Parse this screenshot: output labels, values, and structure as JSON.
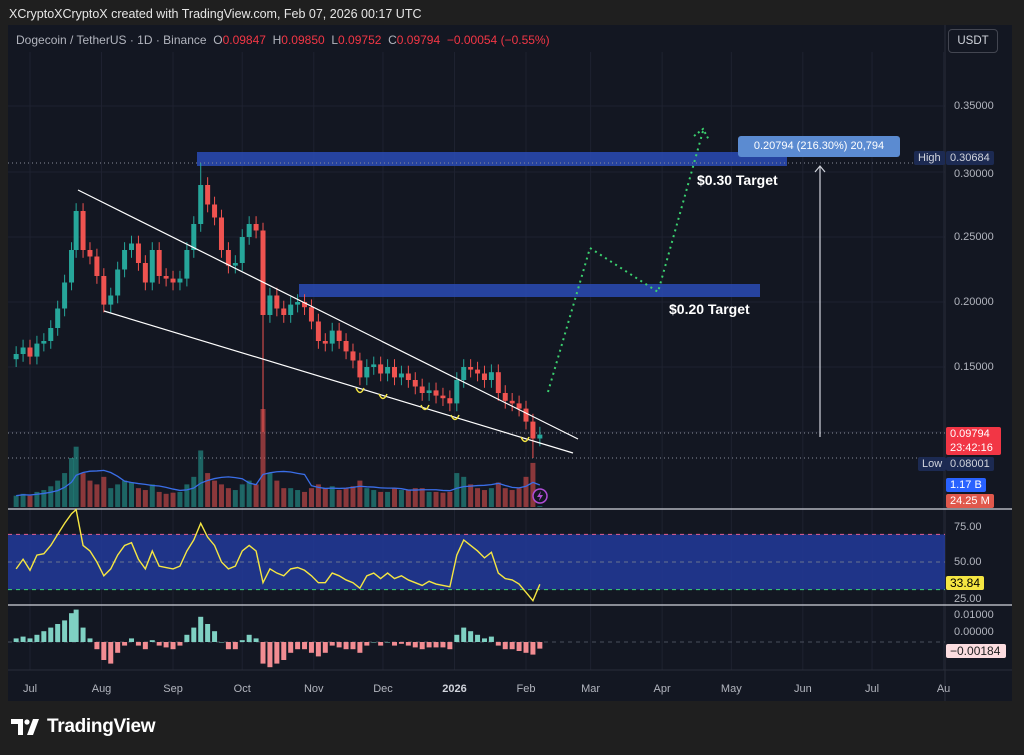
{
  "credit": "XCryptoXCryptoX created with TradingView.com, Feb 07, 2026 00:17 UTC",
  "legend": {
    "symbol": "Dogecoin / TetherUS · 1D · Binance",
    "o_label": "O",
    "o": "0.09847",
    "h_label": "H",
    "h": "0.09850",
    "l_label": "L",
    "l": "0.09752",
    "c_label": "C",
    "c": "0.09794",
    "change": "−0.00054 (−0.55%)"
  },
  "currency_button": "USDT",
  "price_axis": [
    "0.35000",
    "0.30000",
    "0.25000",
    "0.20000",
    "0.15000"
  ],
  "tags": {
    "high_label": "High",
    "high_value": "0.30684",
    "low_label": "Low",
    "low_value": "0.08001",
    "last_price": "0.09794",
    "countdown": "23:42:16",
    "volume_ma": "1.17 B",
    "volume": "24.25 M",
    "rsi_value": "33.84",
    "macd_value": "−0.00184"
  },
  "rsi_axis": [
    "75.00",
    "50.00",
    "25.00"
  ],
  "macd_axis": [
    "0.01000",
    "0.00000"
  ],
  "time_axis": [
    "Jul",
    "Aug",
    "Sep",
    "Oct",
    "Nov",
    "Dec",
    "2026",
    "Feb",
    "Mar",
    "Apr",
    "May",
    "Jun",
    "Jul",
    "Au"
  ],
  "annotations": {
    "target_high": "$0.30 Target",
    "target_low": "$0.20 Target",
    "measure": "0.20794 (216.30%) 20,794"
  },
  "brand": "TradingView",
  "colors": {
    "up": "#26a69a",
    "down": "#ef5350",
    "zone": "#2a4bb5",
    "projection": "#3bd16f",
    "rsi": "#f5e642",
    "volume_ma": "#3a6ee8"
  },
  "chart_data": {
    "type": "candlestick",
    "symbol": "DOGE/USDT",
    "ylim": [
      0.07,
      0.37
    ],
    "dates": [
      "2025-06-25",
      "2025-06-28",
      "2025-07-01",
      "2025-07-04",
      "2025-07-07",
      "2025-07-10",
      "2025-07-13",
      "2025-07-16",
      "2025-07-19",
      "2025-07-21",
      "2025-07-24",
      "2025-07-27",
      "2025-07-30",
      "2025-08-02",
      "2025-08-05",
      "2025-08-08",
      "2025-08-11",
      "2025-08-14",
      "2025-08-17",
      "2025-08-20",
      "2025-08-23",
      "2025-08-26",
      "2025-08-29",
      "2025-09-01",
      "2025-09-04",
      "2025-09-07",
      "2025-09-10",
      "2025-09-13",
      "2025-09-16",
      "2025-09-19",
      "2025-09-22",
      "2025-09-25",
      "2025-09-28",
      "2025-10-01",
      "2025-10-04",
      "2025-10-07",
      "2025-10-10",
      "2025-10-13",
      "2025-10-16",
      "2025-10-19",
      "2025-10-22",
      "2025-10-25",
      "2025-10-28",
      "2025-10-31",
      "2025-11-03",
      "2025-11-06",
      "2025-11-09",
      "2025-11-12",
      "2025-11-15",
      "2025-11-18",
      "2025-11-21",
      "2025-11-24",
      "2025-11-27",
      "2025-11-30",
      "2025-12-03",
      "2025-12-06",
      "2025-12-09",
      "2025-12-12",
      "2025-12-15",
      "2025-12-18",
      "2025-12-21",
      "2025-12-24",
      "2025-12-27",
      "2025-12-30",
      "2026-01-02",
      "2026-01-05",
      "2026-01-08",
      "2026-01-11",
      "2026-01-14",
      "2026-01-17",
      "2026-01-20",
      "2026-01-23",
      "2026-01-26",
      "2026-01-29",
      "2026-02-01",
      "2026-02-04",
      "2026-02-07"
    ],
    "close": [
      0.16,
      0.165,
      0.158,
      0.168,
      0.17,
      0.18,
      0.195,
      0.215,
      0.24,
      0.27,
      0.24,
      0.235,
      0.22,
      0.198,
      0.205,
      0.225,
      0.24,
      0.245,
      0.23,
      0.215,
      0.24,
      0.22,
      0.218,
      0.215,
      0.218,
      0.24,
      0.26,
      0.29,
      0.275,
      0.265,
      0.24,
      0.228,
      0.23,
      0.25,
      0.26,
      0.255,
      0.19,
      0.205,
      0.195,
      0.19,
      0.198,
      0.2,
      0.196,
      0.185,
      0.17,
      0.168,
      0.178,
      0.17,
      0.162,
      0.155,
      0.142,
      0.15,
      0.152,
      0.145,
      0.15,
      0.142,
      0.145,
      0.14,
      0.135,
      0.13,
      0.132,
      0.128,
      0.126,
      0.122,
      0.14,
      0.15,
      0.148,
      0.145,
      0.14,
      0.146,
      0.13,
      0.124,
      0.122,
      0.118,
      0.108,
      0.095,
      0.098
    ],
    "period_high": 0.30684,
    "period_low": 0.08001,
    "volume_m": [
      300,
      350,
      300,
      400,
      450,
      550,
      700,
      900,
      1300,
      1600,
      900,
      700,
      600,
      800,
      500,
      600,
      700,
      650,
      500,
      450,
      600,
      400,
      350,
      380,
      400,
      600,
      800,
      1500,
      900,
      700,
      600,
      500,
      450,
      600,
      700,
      600,
      2600,
      900,
      700,
      500,
      500,
      450,
      400,
      500,
      600,
      500,
      550,
      450,
      500,
      550,
      700,
      500,
      450,
      400,
      400,
      500,
      450,
      450,
      500,
      500,
      400,
      400,
      380,
      400,
      900,
      800,
      600,
      500,
      450,
      500,
      650,
      500,
      450,
      500,
      800,
      1170,
      24.25
    ],
    "rsi": [
      45,
      52,
      44,
      55,
      56,
      62,
      70,
      78,
      85,
      88,
      62,
      58,
      50,
      40,
      45,
      55,
      62,
      64,
      52,
      45,
      58,
      47,
      46,
      45,
      47,
      58,
      66,
      78,
      68,
      62,
      50,
      45,
      47,
      58,
      62,
      58,
      35,
      45,
      42,
      40,
      45,
      46,
      44,
      40,
      35,
      35,
      42,
      40,
      37,
      35,
      31,
      40,
      42,
      38,
      42,
      38,
      40,
      37,
      35,
      33,
      36,
      34,
      33,
      32,
      55,
      66,
      62,
      58,
      53,
      57,
      42,
      38,
      37,
      34,
      28,
      22,
      33.84
    ],
    "rsi_band": [
      30,
      70
    ],
    "macd_hist": [
      0.001,
      0.0015,
      0.001,
      0.002,
      0.003,
      0.004,
      0.005,
      0.006,
      0.008,
      0.009,
      0.004,
      0.001,
      -0.002,
      -0.005,
      -0.006,
      -0.003,
      -0.001,
      0.001,
      -0.001,
      -0.002,
      0.0005,
      -0.001,
      -0.0015,
      -0.002,
      -0.001,
      0.002,
      0.004,
      0.007,
      0.005,
      0.003,
      0.0,
      -0.002,
      -0.002,
      0.0005,
      0.002,
      0.001,
      -0.006,
      -0.007,
      -0.006,
      -0.005,
      -0.003,
      -0.002,
      -0.002,
      -0.003,
      -0.004,
      -0.003,
      -0.001,
      -0.0015,
      -0.002,
      -0.002,
      -0.003,
      -0.001,
      0.0,
      -0.001,
      0.0,
      -0.001,
      -0.0005,
      -0.001,
      -0.0015,
      -0.002,
      -0.0015,
      -0.0015,
      -0.0015,
      -0.002,
      0.002,
      0.004,
      0.003,
      0.002,
      0.001,
      0.0015,
      -0.001,
      -0.002,
      -0.002,
      -0.0025,
      -0.003,
      -0.0035,
      -0.00184
    ]
  }
}
